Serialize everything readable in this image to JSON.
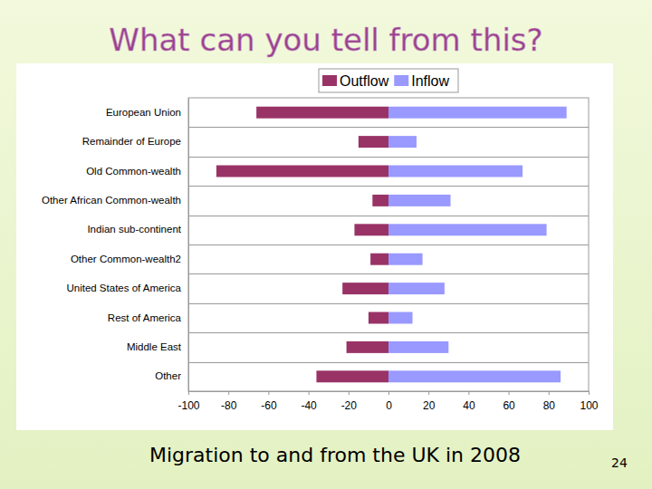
{
  "chart_data": {
    "type": "bar",
    "orientation": "horizontal",
    "title": "What can you tell from this?",
    "subtitle": "Migration to and from the UK in 2008",
    "annotations": [
      "24"
    ],
    "categories": [
      "European Union",
      "Remainder of Europe",
      "Old Common-wealth",
      "Other African Common-wealth",
      "Indian sub-continent",
      "Other Common-wealth2",
      "United States of America",
      "Rest of America",
      "Middle East",
      "Other"
    ],
    "series": [
      {
        "name": "Outflow",
        "color": "#993366",
        "values": [
          -66,
          -15,
          -86,
          -8,
          -17,
          -9,
          -23,
          -10,
          -21,
          -36
        ]
      },
      {
        "name": "Inflow",
        "color": "#9999ff",
        "values": [
          89,
          14,
          67,
          31,
          79,
          17,
          28,
          12,
          30,
          86
        ]
      }
    ],
    "xlim": [
      -100,
      100
    ],
    "xticks": [
      -100,
      -80,
      -60,
      -40,
      -20,
      0,
      20,
      40,
      60,
      80,
      100
    ],
    "grid": true,
    "legend": "top"
  }
}
